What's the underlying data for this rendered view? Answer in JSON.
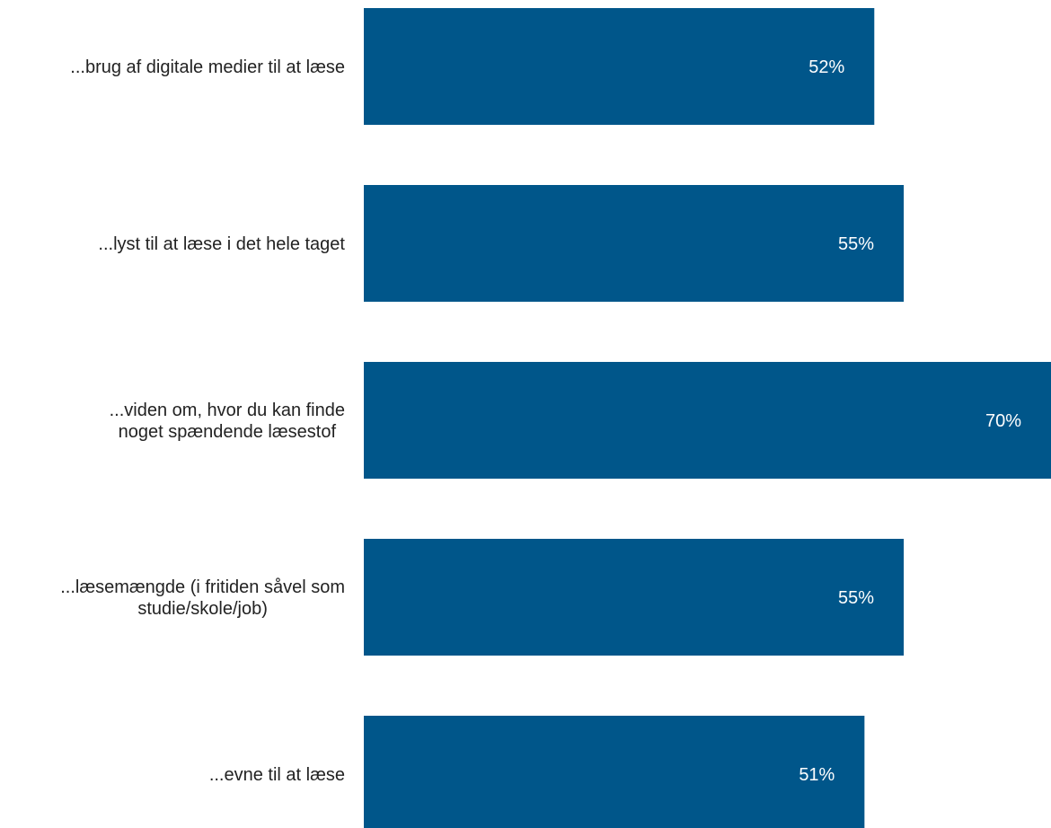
{
  "chart_data": {
    "type": "bar",
    "orientation": "horizontal",
    "categories": [
      [
        "...brug af digitale medier til at læse"
      ],
      [
        "...lyst til at læse i det hele taget"
      ],
      [
        "...viden om, hvor du kan finde",
        "noget spændende læsestof"
      ],
      [
        "...læsemængde (i fritiden såvel som",
        "studie/skole/job)"
      ],
      [
        "...evne til at læse"
      ]
    ],
    "values": [
      52,
      55,
      70,
      55,
      51
    ],
    "value_labels": [
      "52%",
      "55%",
      "70%",
      "55%",
      "51%"
    ],
    "unit": "%",
    "xlim": [
      0,
      70
    ],
    "grid": false,
    "legend": "none",
    "colors": {
      "bar": "#00568a",
      "value_label": "#ffffff",
      "category_label": "#222222"
    }
  }
}
